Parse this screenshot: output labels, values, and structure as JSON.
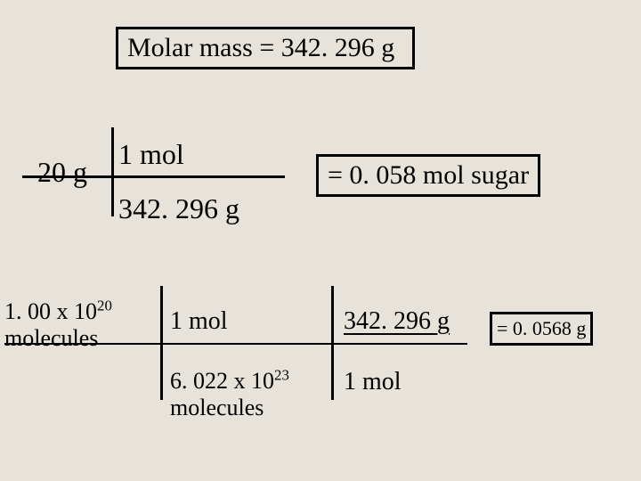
{
  "title": "Molar mass =  342. 296 g",
  "calc1": {
    "mass": "20 g",
    "numer": "1 mol",
    "denom": "342. 296 g",
    "result": "=  0. 058 mol sugar"
  },
  "calc2": {
    "molecules_l1": "1. 00 x 10",
    "molecules_exp": "20",
    "molecules_l2": "molecules",
    "frac1_num": "1 mol",
    "frac1_den_l1": "6. 022 x 10",
    "frac1_den_exp": "23",
    "frac1_den_l2": "molecules",
    "frac2_num": "342. 296 g",
    "frac2_den": "1 mol",
    "result": "= 0. 0568 g"
  },
  "colors": {
    "background": "#e7e2da",
    "text": "#000000",
    "border": "#000000"
  }
}
